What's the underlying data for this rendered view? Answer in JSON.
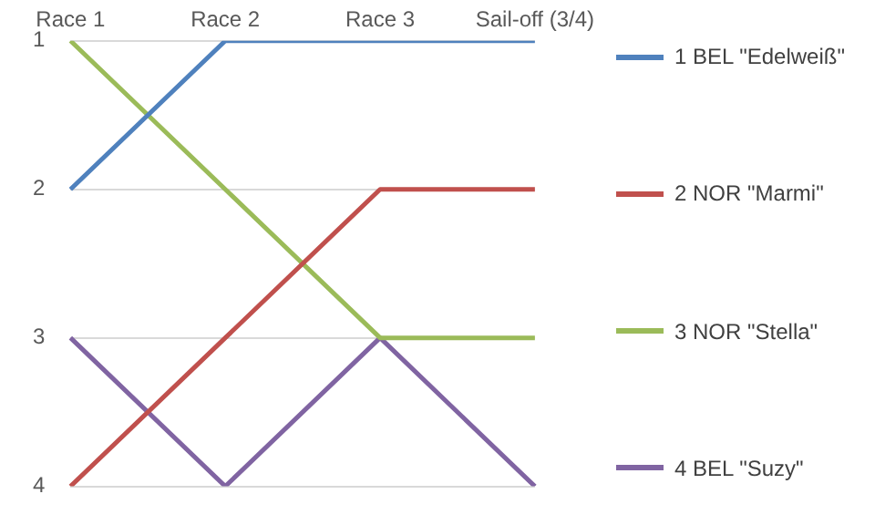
{
  "chart_data": {
    "type": "line",
    "categories": [
      "Race 1",
      "Race 2",
      "Race 3",
      "Sail-off (3/4)"
    ],
    "series": [
      {
        "name": "1 BEL \"Edelweiß\"",
        "color": "#4f81bd",
        "values": [
          2,
          1,
          1,
          1
        ]
      },
      {
        "name": "2 NOR \"Marmi\"",
        "color": "#c0504d",
        "values": [
          4,
          3,
          2,
          2
        ]
      },
      {
        "name": "3 NOR \"Stella\"",
        "color": "#9bbb59",
        "values": [
          1,
          2,
          3,
          3
        ]
      },
      {
        "name": "4 BEL \"Suzy\"",
        "color": "#8064a2",
        "values": [
          3,
          4,
          3,
          4
        ]
      }
    ],
    "ylim": [
      4,
      1
    ],
    "yticks": [
      1,
      2,
      3,
      4
    ],
    "grid": "y",
    "legend": "right",
    "marker": "none",
    "line_style": "solid"
  }
}
